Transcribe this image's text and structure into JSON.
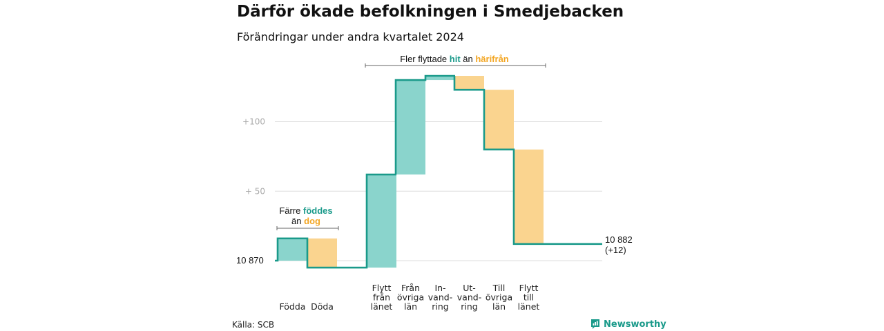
{
  "header": {
    "title": "Därför ökade befolkningen i Smedjebacken",
    "subtitle": "Förändringar under andra kvartalet 2024"
  },
  "chart_data": {
    "type": "waterfall",
    "title": "Därför ökade befolkningen i Smedjebacken",
    "subtitle": "Förändringar under andra kvartalet 2024",
    "base_label": "10  870",
    "start_value": 0,
    "yticks": [
      {
        "value": 50,
        "label": "+  50"
      },
      {
        "value": 100,
        "label": "+100"
      }
    ],
    "ylim": [
      -5,
      134
    ],
    "steps": [
      {
        "label": [
          "Födda"
        ],
        "delta": 16,
        "kind": "in"
      },
      {
        "label": [
          "Döda"
        ],
        "delta": -21,
        "kind": "out"
      },
      {
        "label": [
          "Flytt",
          "från",
          "länet"
        ],
        "delta": 67,
        "kind": "in"
      },
      {
        "label": [
          "Från",
          "övriga",
          "län"
        ],
        "delta": 68,
        "kind": "in"
      },
      {
        "label": [
          "In-",
          "vand-",
          "ring"
        ],
        "delta": 3,
        "kind": "in"
      },
      {
        "label": [
          "Ut-",
          "vand-",
          "ring"
        ],
        "delta": -10,
        "kind": "out"
      },
      {
        "label": [
          "Till",
          "övriga",
          "län"
        ],
        "delta": -43,
        "kind": "out"
      },
      {
        "label": [
          "Flytt",
          "till",
          "länet"
        ],
        "delta": -68,
        "kind": "out"
      }
    ],
    "end_value": 12,
    "end_label": [
      "10 882",
      "(+12)"
    ],
    "colors": {
      "in": "#8ad4cc",
      "out": "#fad48f",
      "line": "#1a9a8a",
      "grid": "#dddddd"
    },
    "annotations": {
      "births": {
        "pre": "Färre ",
        "hl1": "föddes",
        "line2_pre": "än ",
        "hl2": "dog"
      },
      "moves": {
        "pre": "Fler flyttade ",
        "hl1": "hit",
        "mid": "  än ",
        "hl2": "härifrån"
      }
    }
  },
  "footer": {
    "source": "Källa: SCB",
    "brand": "Newsworthy"
  }
}
